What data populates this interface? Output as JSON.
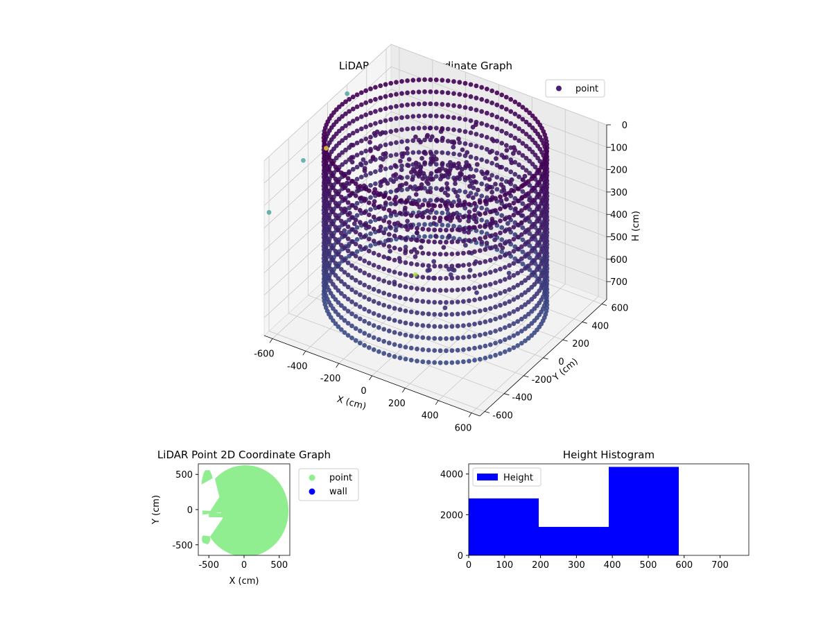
{
  "chart_data": [
    {
      "type": "scatter",
      "projection": "3d",
      "title": "LiDAR Point 3D Coordinate Graph",
      "xlabel": "X (cm)",
      "ylabel": "Y (cm)",
      "zlabel": "H (cm)",
      "xlim": [
        -650,
        650
      ],
      "ylim": [
        -650,
        650
      ],
      "zlim": [
        0,
        780
      ],
      "z_inverted": true,
      "x_ticks": [
        -600,
        -400,
        -200,
        0,
        200,
        400,
        600
      ],
      "y_ticks": [
        -600,
        -400,
        -200,
        0,
        200,
        400,
        600
      ],
      "z_ticks": [
        0,
        100,
        200,
        300,
        400,
        500,
        600,
        700
      ],
      "colormap": "viridis",
      "legend": {
        "entries": [
          "point"
        ],
        "placement": "top-right"
      },
      "grid": true,
      "series": [
        {
          "name": "point",
          "description_kind": "cylindrical-wall",
          "wall_radius": 580,
          "wall_height_range": [
            0,
            700
          ],
          "outliers": [
            {
              "x": -650,
              "y": -600,
              "h": 250,
              "color": "#3e9b9a"
            },
            {
              "x": -620,
              "y": -300,
              "h": 130,
              "color": "#3e9b9a"
            },
            {
              "x": -650,
              "y": 200,
              "h": 40,
              "color": "#3e9b9a"
            },
            {
              "x": -600,
              "y": -100,
              "h": 150,
              "color": "#fde725"
            },
            {
              "x": -150,
              "y": 50,
              "h": 650,
              "color": "#a0da39"
            }
          ]
        }
      ]
    },
    {
      "type": "scatter",
      "title": "LiDAR Point 2D Coordinate Graph",
      "xlabel": "X (cm)",
      "ylabel": "Y (cm)",
      "xlim": [
        -650,
        650
      ],
      "ylim": [
        -650,
        650
      ],
      "x_ticks": [
        -500,
        0,
        500
      ],
      "y_ticks": [
        -500,
        0,
        500
      ],
      "legend": {
        "entries": [
          "point",
          "wall"
        ],
        "placement": "outside-right"
      },
      "series": [
        {
          "name": "point",
          "color": "#90ee90"
        },
        {
          "name": "wall",
          "color": "#0000ff"
        }
      ]
    },
    {
      "type": "bar",
      "title": "Height Histogram",
      "xlim": [
        0,
        780
      ],
      "ylim": [
        0,
        4500
      ],
      "x_ticks": [
        0,
        100,
        200,
        300,
        400,
        500,
        600,
        700
      ],
      "y_ticks": [
        0,
        2000,
        4000
      ],
      "legend": {
        "entries": [
          "Height"
        ],
        "placement": "top-left"
      },
      "series": [
        {
          "name": "Height",
          "color": "#0000ff",
          "bins": [
            {
              "start": 0,
              "end": 195,
              "count": 2800
            },
            {
              "start": 195,
              "end": 390,
              "count": 1400
            },
            {
              "start": 390,
              "end": 585,
              "count": 4350
            }
          ]
        }
      ]
    }
  ]
}
